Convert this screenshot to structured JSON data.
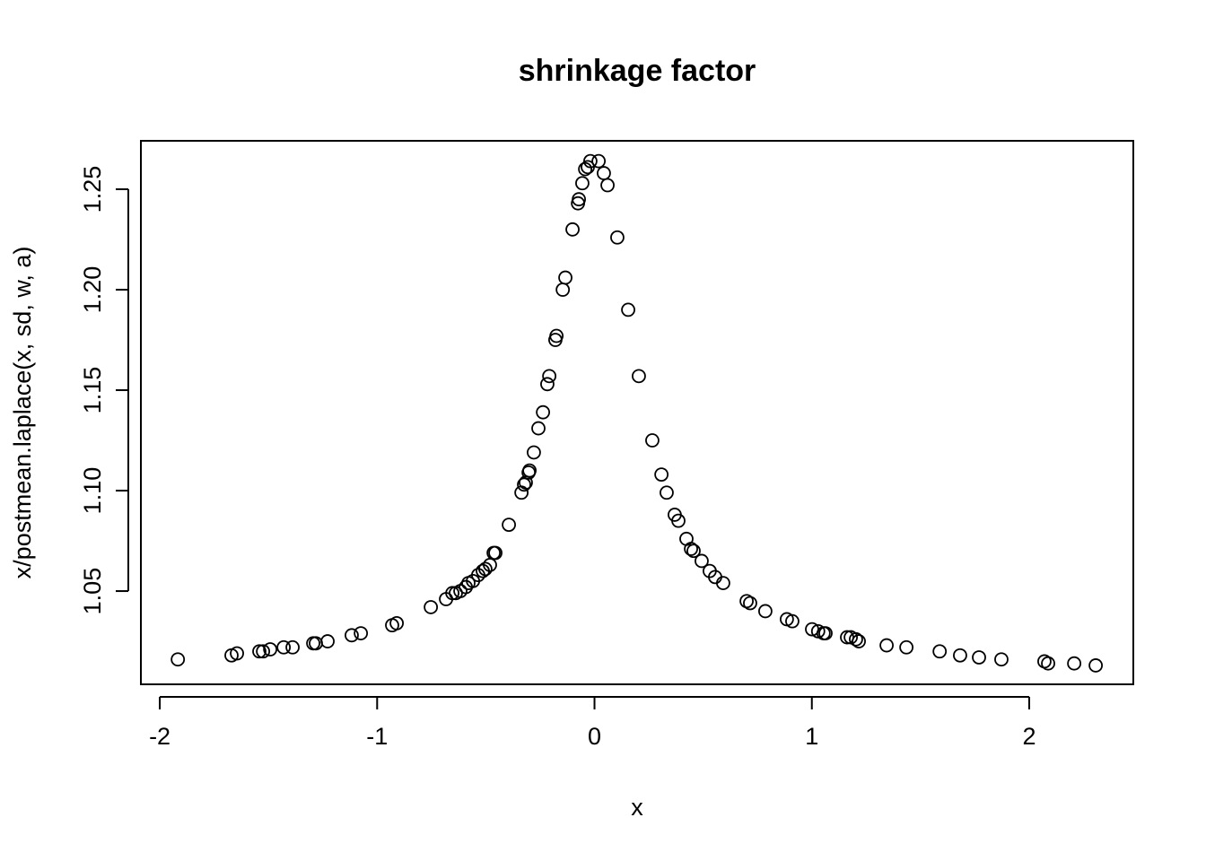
{
  "chart_data": {
    "type": "scatter",
    "title": "shrinkage factor",
    "xlabel": "x",
    "ylabel": "x/postmean.laplace(x, sd, w, a)",
    "color": "#000000",
    "x": [
      -1.917,
      -1.67,
      -1.645,
      -1.542,
      -1.525,
      -1.492,
      -1.43,
      -1.389,
      -1.294,
      -1.282,
      -1.228,
      -1.117,
      -1.075,
      -0.931,
      -0.91,
      -0.753,
      -0.683,
      -0.654,
      -0.638,
      -0.617,
      -0.592,
      -0.58,
      -0.559,
      -0.535,
      -0.514,
      -0.502,
      -0.481,
      -0.464,
      -0.456,
      -0.394,
      -0.336,
      -0.324,
      -0.316,
      -0.303,
      -0.299,
      -0.279,
      -0.258,
      -0.237,
      -0.217,
      -0.208,
      -0.18,
      -0.175,
      -0.146,
      -0.134,
      -0.101,
      -0.076,
      -0.072,
      -0.056,
      -0.043,
      -0.031,
      -0.019,
      0.019,
      0.043,
      0.06,
      0.105,
      0.155,
      0.204,
      0.266,
      0.308,
      0.332,
      0.369,
      0.386,
      0.423,
      0.444,
      0.456,
      0.493,
      0.53,
      0.555,
      0.592,
      0.7,
      0.716,
      0.786,
      0.885,
      0.91,
      1.001,
      1.029,
      1.054,
      1.063,
      1.162,
      1.179,
      1.203,
      1.216,
      1.344,
      1.435,
      1.588,
      1.682,
      1.769,
      1.872,
      2.07,
      2.087,
      2.207,
      2.306
    ],
    "y": [
      1.016,
      1.018,
      1.019,
      1.02,
      1.02,
      1.021,
      1.022,
      1.022,
      1.024,
      1.024,
      1.025,
      1.028,
      1.029,
      1.033,
      1.034,
      1.042,
      1.046,
      1.049,
      1.049,
      1.05,
      1.052,
      1.054,
      1.055,
      1.058,
      1.06,
      1.061,
      1.063,
      1.069,
      1.069,
      1.083,
      1.099,
      1.103,
      1.104,
      1.109,
      1.11,
      1.119,
      1.131,
      1.139,
      1.153,
      1.157,
      1.175,
      1.177,
      1.2,
      1.206,
      1.23,
      1.243,
      1.245,
      1.253,
      1.26,
      1.261,
      1.264,
      1.264,
      1.258,
      1.252,
      1.226,
      1.19,
      1.157,
      1.125,
      1.108,
      1.099,
      1.088,
      1.085,
      1.076,
      1.071,
      1.07,
      1.065,
      1.06,
      1.057,
      1.054,
      1.045,
      1.044,
      1.04,
      1.036,
      1.035,
      1.031,
      1.03,
      1.029,
      1.029,
      1.027,
      1.027,
      1.026,
      1.025,
      1.023,
      1.022,
      1.02,
      1.018,
      1.017,
      1.016,
      1.015,
      1.014,
      1.014,
      1.013
    ],
    "xlim": [
      -2.087,
      2.479
    ],
    "ylim": [
      1.0036,
      1.2741
    ],
    "xticks": [
      -2,
      -1,
      0,
      1,
      2
    ],
    "yticks": [
      1.05,
      {
        "value": 1.1,
        "label": "1.10"
      },
      1.15,
      {
        "value": 1.2,
        "label": "1.20"
      },
      1.25
    ]
  }
}
